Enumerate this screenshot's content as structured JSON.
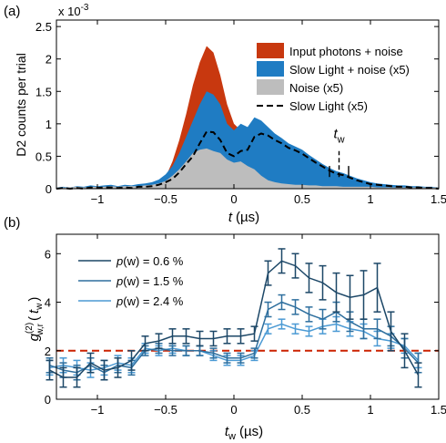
{
  "colors": {
    "input": "#c8380f",
    "slow": "#1f7cc3",
    "noise": "#bdbdbd",
    "p1": "#1c4767",
    "p2": "#2e6f9e",
    "p3": "#4b9ad4",
    "ref": "#cc2200"
  },
  "chart_data": [
    {
      "panel_label": "(a)",
      "type": "area",
      "ylabel": "D2 counts per trial",
      "xlabel_symbol": "t",
      "xlabel_unit": "(µs)",
      "y_multiplier": "x 10",
      "y_multiplier_exp": "-3",
      "xlim": [
        -1.3,
        1.5
      ],
      "ylim": [
        0,
        2.6
      ],
      "xticks": [
        -1,
        -0.5,
        0,
        0.5,
        1,
        1.5
      ],
      "xtick_labels": [
        "−1",
        "−0.5",
        "0",
        "0.5",
        "1",
        "1.5"
      ],
      "yticks": [
        0,
        0.5,
        1,
        1.5,
        2,
        2.5
      ],
      "ytick_labels": [
        "0",
        "0.5",
        "1",
        "1.5",
        "2",
        "2.5"
      ],
      "annotation": {
        "text": "t",
        "sub": "w",
        "x": 0.77
      },
      "marker_lines": [
        0.7,
        0.77,
        0.84
      ],
      "legend_position": "top-right",
      "x": [
        -1.3,
        -1.25,
        -1.2,
        -1.15,
        -1.1,
        -1.05,
        -1.0,
        -0.95,
        -0.9,
        -0.85,
        -0.8,
        -0.75,
        -0.7,
        -0.65,
        -0.6,
        -0.55,
        -0.5,
        -0.45,
        -0.4,
        -0.35,
        -0.3,
        -0.25,
        -0.2,
        -0.15,
        -0.1,
        -0.05,
        0.0,
        0.05,
        0.1,
        0.15,
        0.2,
        0.25,
        0.3,
        0.35,
        0.4,
        0.45,
        0.5,
        0.55,
        0.6,
        0.65,
        0.7,
        0.75,
        0.8,
        0.85,
        0.9,
        0.95,
        1.0,
        1.05,
        1.1,
        1.15,
        1.2,
        1.25,
        1.3,
        1.35,
        1.4,
        1.45,
        1.5
      ],
      "series": [
        {
          "name": "Input photons + noise",
          "style": "area",
          "color_key": "input",
          "values": [
            0,
            0,
            0,
            0,
            0,
            0,
            0,
            0,
            0,
            0,
            0,
            0,
            0,
            0,
            0.02,
            0.06,
            0.18,
            0.42,
            0.75,
            1.15,
            1.6,
            1.95,
            2.2,
            2.1,
            1.75,
            1.3,
            1.0,
            0.9,
            0.85,
            0.75,
            0.6,
            0.5,
            0.4,
            0.33,
            0.28,
            0.24,
            0.2,
            0.17,
            0.15,
            0.13,
            0.11,
            0.1,
            0.09,
            0.08,
            0.06,
            0.05,
            0.04,
            0.03,
            0.02,
            0.02,
            0.01,
            0.01,
            0,
            0,
            0,
            0,
            0
          ]
        },
        {
          "name": "Slow Light + noise (x5)",
          "style": "area",
          "color_key": "slow",
          "values": [
            0.02,
            0.03,
            0.02,
            0.04,
            0.03,
            0.05,
            0.04,
            0.05,
            0.06,
            0.04,
            0.06,
            0.05,
            0.07,
            0.08,
            0.1,
            0.14,
            0.22,
            0.35,
            0.55,
            0.8,
            1.05,
            1.3,
            1.5,
            1.45,
            1.3,
            1.0,
            0.9,
            1.0,
            0.95,
            1.1,
            1.05,
            0.95,
            0.85,
            0.78,
            0.7,
            0.65,
            0.6,
            0.52,
            0.45,
            0.38,
            0.32,
            0.27,
            0.24,
            0.2,
            0.16,
            0.13,
            0.1,
            0.08,
            0.07,
            0.06,
            0.05,
            0.05,
            0.04,
            0.04,
            0.03,
            0.03,
            0.02
          ]
        },
        {
          "name": "Noise (x5)",
          "style": "area",
          "color_key": "noise",
          "values": [
            0.02,
            0.02,
            0.02,
            0.03,
            0.02,
            0.03,
            0.03,
            0.03,
            0.04,
            0.03,
            0.04,
            0.04,
            0.04,
            0.05,
            0.06,
            0.08,
            0.12,
            0.2,
            0.3,
            0.42,
            0.55,
            0.6,
            0.62,
            0.58,
            0.55,
            0.45,
            0.4,
            0.42,
            0.35,
            0.3,
            0.2,
            0.13,
            0.1,
            0.08,
            0.07,
            0.06,
            0.06,
            0.05,
            0.05,
            0.04,
            0.04,
            0.04,
            0.03,
            0.03,
            0.03,
            0.03,
            0.03,
            0.02,
            0.02,
            0.02,
            0.02,
            0.02,
            0.02,
            0.02,
            0.02,
            0.02,
            0.02
          ]
        },
        {
          "name": "Slow Light (x5)",
          "style": "dashed",
          "color_key": "black",
          "values": [
            0,
            0.01,
            0,
            0.01,
            0,
            0.02,
            0.01,
            0.02,
            0.02,
            0.01,
            0.02,
            0.01,
            0.03,
            0.03,
            0.04,
            0.06,
            0.1,
            0.15,
            0.25,
            0.38,
            0.5,
            0.7,
            0.88,
            0.87,
            0.75,
            0.55,
            0.5,
            0.58,
            0.6,
            0.8,
            0.85,
            0.82,
            0.75,
            0.7,
            0.63,
            0.59,
            0.54,
            0.47,
            0.4,
            0.34,
            0.28,
            0.23,
            0.21,
            0.17,
            0.13,
            0.1,
            0.07,
            0.06,
            0.05,
            0.04,
            0.03,
            0.03,
            0.02,
            0.02,
            0.01,
            0.01,
            0
          ]
        }
      ]
    },
    {
      "panel_label": "(b)",
      "type": "line",
      "ylabel_main": "g",
      "ylabel_sup": "(2)",
      "ylabel_sub": "w,r",
      "ylabel_arg_sym": "t",
      "ylabel_arg_sub": "w",
      "xlabel_symbol": "t",
      "xlabel_sub": "w",
      "xlabel_unit": "(µs)",
      "xlim": [
        -1.3,
        1.5
      ],
      "ylim": [
        0,
        6.8
      ],
      "xticks": [
        -1,
        -0.5,
        0,
        0.5,
        1,
        1.5
      ],
      "xtick_labels": [
        "−1",
        "−0.5",
        "0",
        "0.5",
        "1",
        "1.5"
      ],
      "yticks": [
        0,
        2,
        4,
        6
      ],
      "ytick_labels": [
        "0",
        "2",
        "4",
        "6"
      ],
      "reference_line": 2.0,
      "legend_position": "top-left",
      "x": [
        -1.35,
        -1.25,
        -1.15,
        -1.05,
        -0.95,
        -0.85,
        -0.75,
        -0.65,
        -0.55,
        -0.45,
        -0.35,
        -0.25,
        -0.15,
        -0.05,
        0.05,
        0.15,
        0.25,
        0.35,
        0.45,
        0.55,
        0.65,
        0.75,
        0.85,
        0.95,
        1.05,
        1.15,
        1.25,
        1.35
      ],
      "series": [
        {
          "name_prefix": "p",
          "name_arg": "(w)",
          "name_value": " = 0.6 %",
          "color_key": "p1",
          "values": [
            1.2,
            0.9,
            0.9,
            1.5,
            1.2,
            1.3,
            1.6,
            2.3,
            2.4,
            2.6,
            2.6,
            2.5,
            2.5,
            2.6,
            2.6,
            2.7,
            5.2,
            5.7,
            5.5,
            5.0,
            4.8,
            4.4,
            4.2,
            4.3,
            4.6,
            2.8,
            2.0,
            1.0
          ],
          "errors": [
            0.4,
            0.4,
            0.4,
            0.4,
            0.4,
            0.4,
            0.4,
            0.3,
            0.3,
            0.3,
            0.3,
            0.3,
            0.3,
            0.3,
            0.3,
            0.3,
            0.5,
            0.5,
            0.5,
            0.6,
            0.7,
            0.8,
            0.9,
            1.0,
            1.0,
            0.8,
            0.7,
            0.5
          ]
        },
        {
          "name_prefix": "p",
          "name_arg": "(w)",
          "name_value": " = 1.5 %",
          "color_key": "p2",
          "values": [
            1.4,
            1.2,
            1.1,
            1.4,
            1.1,
            1.4,
            1.3,
            2.0,
            2.1,
            2.0,
            2.0,
            2.0,
            1.9,
            1.7,
            1.7,
            1.9,
            3.7,
            4.0,
            3.8,
            3.5,
            3.3,
            3.6,
            3.2,
            2.9,
            2.9,
            2.6,
            2.1,
            1.5
          ],
          "errors": [
            0.3,
            0.3,
            0.3,
            0.3,
            0.3,
            0.3,
            0.3,
            0.2,
            0.2,
            0.2,
            0.2,
            0.2,
            0.2,
            0.2,
            0.2,
            0.2,
            0.3,
            0.3,
            0.3,
            0.3,
            0.4,
            0.4,
            0.4,
            0.4,
            0.4,
            0.4,
            0.4,
            0.4
          ]
        },
        {
          "name_prefix": "p",
          "name_arg": "(w)",
          "name_value": " = 2.4 %",
          "color_key": "p3",
          "values": [
            1.3,
            1.4,
            1.3,
            1.2,
            1.3,
            1.5,
            1.4,
            2.1,
            2.0,
            2.1,
            2.0,
            2.0,
            1.8,
            1.6,
            1.6,
            1.8,
            2.9,
            3.1,
            2.9,
            2.8,
            3.0,
            3.1,
            2.9,
            2.8,
            2.5,
            2.4,
            2.2,
            1.6
          ],
          "errors": [
            0.3,
            0.3,
            0.3,
            0.3,
            0.3,
            0.3,
            0.3,
            0.2,
            0.2,
            0.2,
            0.2,
            0.2,
            0.2,
            0.2,
            0.2,
            0.2,
            0.2,
            0.2,
            0.2,
            0.2,
            0.3,
            0.3,
            0.3,
            0.3,
            0.3,
            0.3,
            0.3,
            0.3
          ]
        }
      ]
    }
  ]
}
